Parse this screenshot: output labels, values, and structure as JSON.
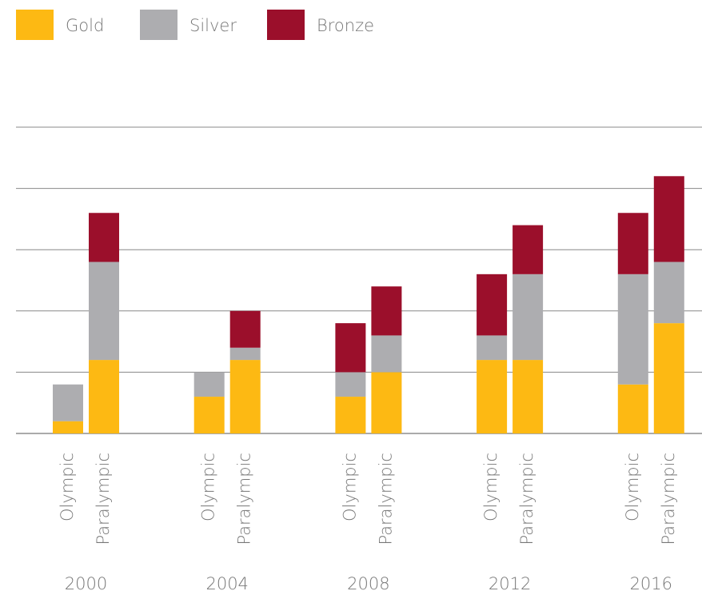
{
  "chart_data": {
    "type": "stacked_bar",
    "groups": [
      "2000",
      "2004",
      "2008",
      "2012",
      "2016"
    ],
    "subcategories": [
      "Olympic",
      "Paralympic"
    ],
    "series": [
      {
        "name": "Gold",
        "color": "#FDB913",
        "values": [
          [
            1,
            6
          ],
          [
            3,
            6
          ],
          [
            3,
            5
          ],
          [
            6,
            6
          ],
          [
            4,
            9
          ]
        ]
      },
      {
        "name": "Silver",
        "color": "#ADADB0",
        "values": [
          [
            3,
            8
          ],
          [
            2,
            1
          ],
          [
            2,
            3
          ],
          [
            2,
            7
          ],
          [
            9,
            5
          ]
        ]
      },
      {
        "name": "Bronze",
        "color": "#9B0F2B",
        "values": [
          [
            0,
            4
          ],
          [
            0,
            3
          ],
          [
            4,
            4
          ],
          [
            5,
            4
          ],
          [
            5,
            7
          ]
        ]
      }
    ],
    "ylim": [
      0,
      25
    ],
    "yticks": [
      0,
      5,
      10,
      15,
      20,
      25
    ],
    "grid": true
  }
}
